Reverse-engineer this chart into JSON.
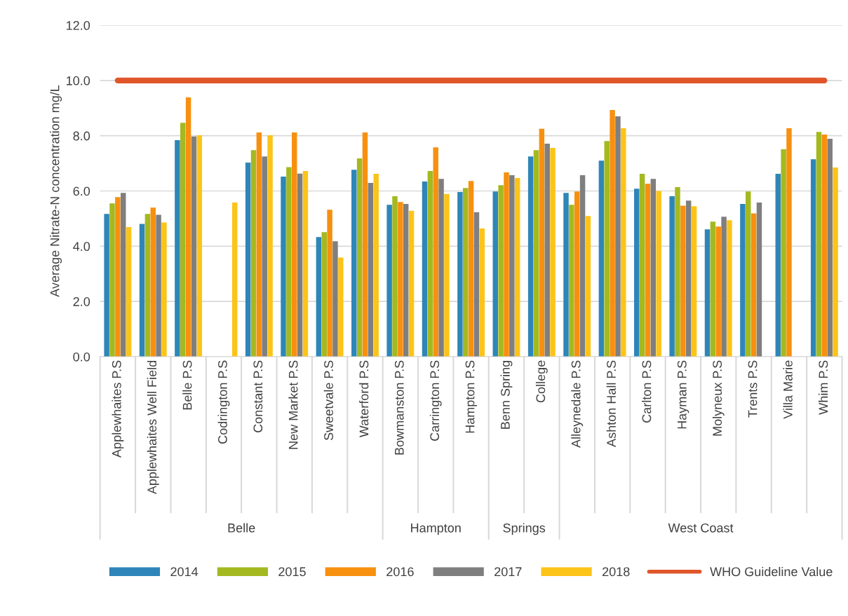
{
  "chart_data": {
    "type": "bar",
    "ylabel": "Average Nitrate-N concentration mg/L",
    "categories": [
      "Applewhaites P.S",
      "Applewhaites Well Field",
      "Belle P.S",
      "Codrington P.S",
      "Constant P.S",
      "New Market P.S",
      "Sweetvale P.S",
      "Waterford P.S",
      "Bowmanston P.S",
      "Carrington P.S",
      "Hampton P.S",
      "Benn Spring",
      "College",
      "Alleynedale P.S",
      "Ashton Hall P.S",
      "Carlton P.S",
      "Hayman P.S",
      "Molyneux P.S",
      "Trents P.S",
      "Villa Marie",
      "Whim P.S"
    ],
    "series": [
      {
        "name": "2014",
        "color": "#2e86b8",
        "values": [
          5.17,
          4.81,
          7.84,
          null,
          7.03,
          6.52,
          4.33,
          6.77,
          5.5,
          6.34,
          5.96,
          5.98,
          7.25,
          5.93,
          7.1,
          6.08,
          5.81,
          4.61,
          5.53,
          6.62,
          7.15
        ]
      },
      {
        "name": "2015",
        "color": "#a4b920",
        "values": [
          5.55,
          5.17,
          8.47,
          null,
          7.48,
          6.86,
          4.51,
          7.18,
          5.81,
          6.72,
          6.11,
          6.21,
          7.48,
          5.5,
          7.81,
          6.62,
          6.14,
          4.89,
          5.98,
          7.51,
          8.14
        ]
      },
      {
        "name": "2016",
        "color": "#f7900f",
        "values": [
          5.78,
          5.4,
          9.39,
          null,
          8.12,
          8.12,
          5.32,
          8.12,
          5.6,
          7.58,
          6.36,
          6.67,
          8.25,
          5.98,
          8.93,
          6.26,
          5.47,
          4.71,
          5.19,
          8.27,
          8.04
        ]
      },
      {
        "name": "2017",
        "color": "#7f7f7f",
        "values": [
          5.93,
          5.14,
          7.97,
          null,
          7.25,
          6.63,
          4.18,
          6.29,
          5.53,
          6.44,
          5.23,
          6.57,
          7.71,
          6.57,
          8.7,
          6.44,
          5.65,
          5.07,
          5.58,
          null,
          7.89
        ]
      },
      {
        "name": "2018",
        "color": "#fcc419",
        "values": [
          4.69,
          4.86,
          8.02,
          5.58,
          8.02,
          6.72,
          3.59,
          6.62,
          5.28,
          5.89,
          4.64,
          6.47,
          7.56,
          5.09,
          8.27,
          6.0,
          5.45,
          4.94,
          null,
          null,
          6.85
        ]
      },
      {
        "name": "WHO Guideline Value",
        "type": "line",
        "color": "#e0562a",
        "values": [
          10,
          10,
          10,
          10,
          10,
          10,
          10,
          10,
          10,
          10,
          10,
          10,
          10,
          10,
          10,
          10,
          10,
          10,
          10,
          10,
          10
        ]
      }
    ],
    "ylim": [
      0,
      12
    ],
    "yticks": [
      {
        "value": 0,
        "label": "0.0"
      },
      {
        "value": 2,
        "label": "2.0"
      },
      {
        "value": 4,
        "label": "4.0"
      },
      {
        "value": 6,
        "label": "6.0"
      },
      {
        "value": 8,
        "label": "8.0"
      },
      {
        "value": 10,
        "label": "10.0"
      },
      {
        "value": 12,
        "label": "12.0"
      }
    ],
    "annotations": [
      "Belle",
      "Hampton",
      "Springs",
      "West Coast"
    ],
    "grid": "y",
    "legend": "bottom"
  }
}
